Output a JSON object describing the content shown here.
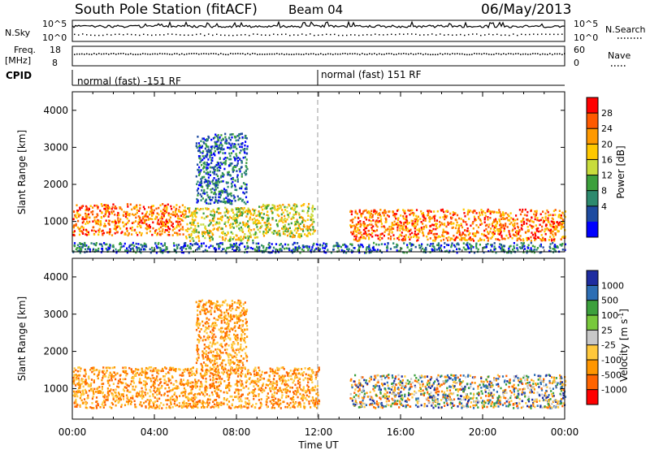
{
  "header": {
    "title": "South Pole Station (fitACF)",
    "beam": "Beam 04",
    "date": "06/May/2013"
  },
  "top_panels": {
    "nsky_label": "N.Sky",
    "nsky_ticks": [
      "10^5",
      "10^0"
    ],
    "nsearch_label": "N.Search",
    "nsearch_ticks": [
      "10^5",
      "10^0"
    ],
    "freq_label_line1": "Freq.",
    "freq_label_line2": "[MHz]",
    "freq_ticks": [
      "18",
      "8"
    ],
    "nave_label": "Nave",
    "nave_ticks": [
      "60",
      "0"
    ],
    "cpid_label": "CPID",
    "cpid_segments": [
      {
        "text": "normal (fast) -151 RF",
        "start_hour": 0
      },
      {
        "text": "normal (fast) 151 RF",
        "start_hour": 12
      }
    ]
  },
  "chart_data": [
    {
      "type": "heatmap",
      "panel": "power",
      "ylabel": "Slant Range [km]",
      "xlabel": "",
      "x_range_hours": [
        0,
        24
      ],
      "x_ticks": [
        "00:00",
        "04:00",
        "08:00",
        "12:00",
        "16:00",
        "20:00",
        "00:00"
      ],
      "ylim": [
        180,
        4500
      ],
      "y_ticks": [
        1000,
        2000,
        3000,
        4000
      ],
      "colorbar": {
        "label": "Power [dB]",
        "ticks": [
          "28",
          "24",
          "20",
          "16",
          "12",
          "8",
          "4"
        ],
        "colors": [
          "#ff0000",
          "#ff5a00",
          "#ff9900",
          "#ffc800",
          "#c8dc3c",
          "#3ca03c",
          "#2d8a6e",
          "#1e4ba0",
          "#0000ff"
        ]
      },
      "scatter_regions": [
        {
          "t0": 0.0,
          "t1": 5.5,
          "r0": 650,
          "r1": 1500,
          "level": "high"
        },
        {
          "t0": 5.5,
          "t1": 9.0,
          "r0": 500,
          "r1": 1400,
          "level": "mid"
        },
        {
          "t0": 9.0,
          "t1": 11.8,
          "r0": 600,
          "r1": 1500,
          "level": "mid"
        },
        {
          "t0": 13.5,
          "t1": 24.0,
          "r0": 500,
          "r1": 1350,
          "level": "high"
        },
        {
          "t0": 6.0,
          "t1": 8.5,
          "r0": 1500,
          "r1": 3400,
          "level": "low"
        },
        {
          "t0": 0.0,
          "t1": 24.0,
          "r0": 180,
          "r1": 450,
          "level": "low"
        }
      ]
    },
    {
      "type": "heatmap",
      "panel": "velocity",
      "ylabel": "Slant Range [km]",
      "xlabel": "Time UT",
      "x_range_hours": [
        0,
        24
      ],
      "x_ticks": [
        "00:00",
        "04:00",
        "08:00",
        "12:00",
        "16:00",
        "20:00",
        "00:00"
      ],
      "ylim": [
        180,
        4500
      ],
      "y_ticks": [
        1000,
        2000,
        3000,
        4000
      ],
      "colorbar": {
        "label": "Velocity [m s",
        "label_superscript": "-1",
        "label_close": "]",
        "ticks": [
          "1000",
          "500",
          "100",
          "25",
          "-25",
          "-100",
          "-500",
          "-1000"
        ],
        "colors": [
          "#1e2ca0",
          "#2d6eb4",
          "#3ca03c",
          "#78c83c",
          "#c8c8c8",
          "#ffc83c",
          "#ff9600",
          "#ff6400",
          "#ff0000"
        ]
      },
      "scatter_regions": [
        {
          "t0": 0.0,
          "t1": 12.0,
          "r0": 500,
          "r1": 1600,
          "level": "away"
        },
        {
          "t0": 13.5,
          "t1": 24.0,
          "r0": 500,
          "r1": 1400,
          "level": "mixed"
        },
        {
          "t0": 6.0,
          "t1": 8.5,
          "r0": 1500,
          "r1": 3400,
          "level": "away"
        }
      ]
    }
  ]
}
